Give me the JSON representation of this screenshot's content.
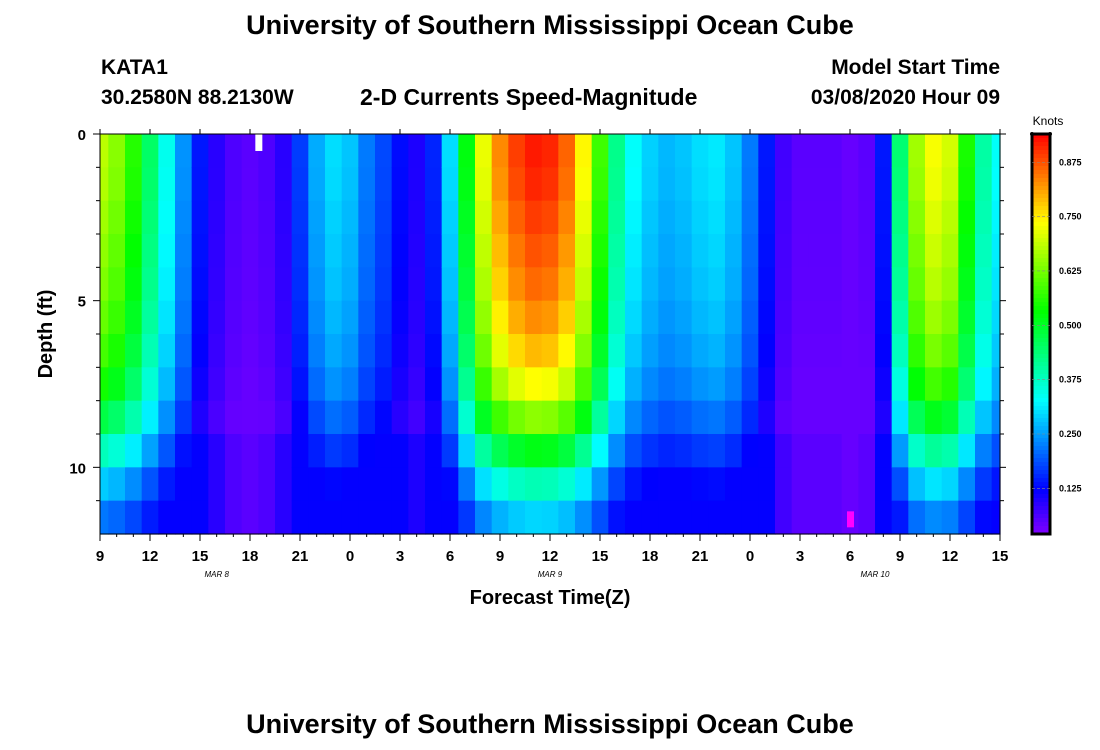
{
  "header": {
    "title_top": "University of Southern Mississippi Ocean Cube",
    "title_bottom": "University of Southern Mississippi Ocean Cube",
    "station": "KATA1",
    "coords": "30.2580N 88.2130W",
    "subtitle": "2-D Currents Speed-Magnitude",
    "model_label": "Model Start Time",
    "model_time": "03/08/2020 Hour 09"
  },
  "chart_data": {
    "type": "heatmap",
    "title": "2-D Currents Speed-Magnitude",
    "xlabel": "Forecast Time(Z)",
    "ylabel": "Depth (ft)",
    "colorbar_label": "Knots",
    "x_hours": [
      0,
      1,
      2,
      3,
      4,
      5,
      6,
      7,
      8,
      9,
      10,
      11,
      12,
      13,
      14,
      15,
      16,
      17,
      18,
      19,
      20,
      21,
      22,
      23,
      24,
      25,
      26,
      27,
      28,
      29,
      30,
      31,
      32,
      33,
      34,
      35,
      36,
      37,
      38,
      39,
      40,
      41,
      42,
      43,
      44,
      45,
      46,
      47,
      48,
      49,
      50,
      51,
      52,
      53,
      54
    ],
    "x_ticks": [
      "9",
      "12",
      "15",
      "18",
      "21",
      "0",
      "3",
      "6",
      "9",
      "12",
      "15",
      "18",
      "21",
      "0",
      "3",
      "6",
      "9",
      "12",
      "15"
    ],
    "date_labels": [
      {
        "text": "MAR  8",
        "hour": 7
      },
      {
        "text": "MAR  9",
        "hour": 27
      },
      {
        "text": "MAR  10",
        "hour": 46.5
      }
    ],
    "y_ticks": [
      0,
      5,
      10
    ],
    "ylim": [
      0,
      12
    ],
    "y_depths": [
      0.5,
      1.5,
      2.5,
      3.5,
      4.5,
      5.5,
      6.5,
      7.5,
      8.5,
      9.5,
      10.5,
      11.5
    ],
    "colorbar_ticks": [
      0.125,
      0.25,
      0.375,
      0.5,
      0.625,
      0.75,
      0.875
    ],
    "colorbar_tick_labels": [
      "0.125",
      "0.250",
      "0.375",
      "0.500",
      "0.625",
      "0.750",
      "0.875"
    ],
    "vmin": 0.02,
    "vmax": 0.94,
    "colors": {
      "plot_border": "#000000",
      "max_marker": "#ffffff",
      "min_marker": "#ff00ff"
    },
    "surface_speed": [
      0.68,
      0.64,
      0.56,
      0.45,
      0.34,
      0.24,
      0.14,
      0.09,
      0.06,
      0.05,
      0.06,
      0.09,
      0.17,
      0.26,
      0.3,
      0.28,
      0.22,
      0.18,
      0.13,
      0.1,
      0.15,
      0.3,
      0.52,
      0.72,
      0.83,
      0.89,
      0.92,
      0.91,
      0.86,
      0.74,
      0.58,
      0.42,
      0.33,
      0.29,
      0.27,
      0.28,
      0.3,
      0.31,
      0.28,
      0.22,
      0.14,
      0.07,
      0.05,
      0.05,
      0.05,
      0.04,
      0.05,
      0.14,
      0.44,
      0.66,
      0.73,
      0.7,
      0.55,
      0.4,
      0.33
    ],
    "depth_attenuation": [
      1.0,
      0.99,
      0.97,
      0.95,
      0.93,
      0.9,
      0.86,
      0.8,
      0.7,
      0.56,
      0.42,
      0.32
    ],
    "bottom_floor_speed": 0.12,
    "max_marker": {
      "hour": 9.5,
      "depth": 0.25
    },
    "min_marker": {
      "hour": 45,
      "depth": 11.8
    }
  }
}
